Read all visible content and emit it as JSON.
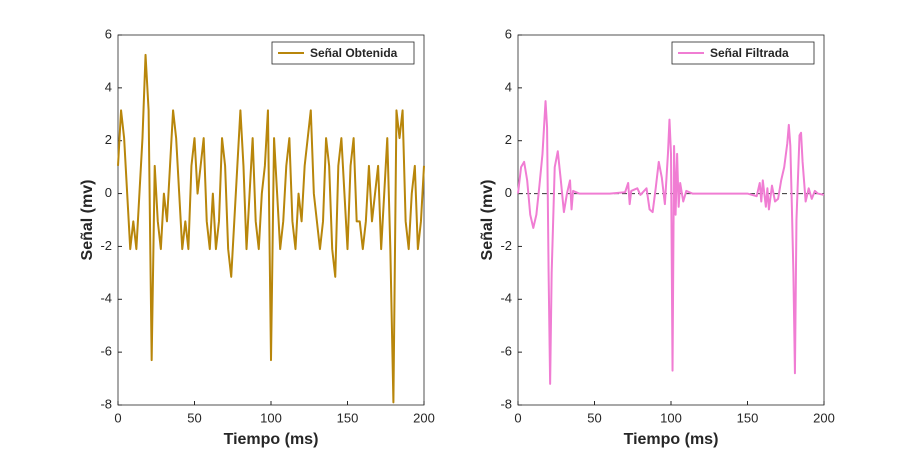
{
  "chart_data": [
    {
      "type": "line",
      "xlabel": "Tiempo (ms)",
      "ylabel": "Señal (mv)",
      "xlim": [
        0,
        200
      ],
      "ylim": [
        -8,
        6
      ],
      "xticks": [
        0,
        50,
        100,
        150,
        200
      ],
      "yticks": [
        -8,
        -6,
        -4,
        -2,
        0,
        2,
        4,
        6
      ],
      "legend": "upper right",
      "series": [
        {
          "name": "Señal Obtenida",
          "color": "#b8860b",
          "x": [
            0,
            2,
            4,
            6,
            8,
            10,
            12,
            14,
            16,
            18,
            20,
            22,
            24,
            26,
            28,
            30,
            32,
            34,
            36,
            38,
            40,
            42,
            44,
            46,
            48,
            50,
            52,
            54,
            56,
            58,
            60,
            62,
            64,
            66,
            68,
            70,
            72,
            74,
            76,
            78,
            80,
            82,
            84,
            86,
            88,
            90,
            92,
            94,
            96,
            98,
            100,
            102,
            104,
            106,
            108,
            110,
            112,
            114,
            116,
            118,
            120,
            122,
            124,
            126,
            128,
            130,
            132,
            134,
            136,
            138,
            140,
            142,
            144,
            146,
            148,
            150,
            152,
            154,
            156,
            158,
            160,
            162,
            164,
            166,
            168,
            170,
            172,
            174,
            176,
            178,
            180,
            182,
            184,
            186,
            188,
            190,
            192,
            194,
            196,
            198,
            200
          ],
          "values": [
            1.05,
            3.15,
            2.1,
            0,
            -2.1,
            -1.05,
            -2.1,
            0,
            2.1,
            5.25,
            3.15,
            -6.3,
            1.05,
            -1.05,
            -2.1,
            0,
            -1.05,
            1.05,
            3.15,
            2.1,
            0,
            -2.1,
            -1.05,
            -2.1,
            1.05,
            2.1,
            0,
            1.05,
            2.1,
            -1.05,
            -2.1,
            0,
            -2.1,
            -1.05,
            2.1,
            1.05,
            -2.1,
            -3.15,
            -1.05,
            1.05,
            3.15,
            1.05,
            -2.1,
            0,
            2.1,
            -1.05,
            -2.1,
            0,
            1.05,
            3.15,
            -6.3,
            2.1,
            0,
            -2.1,
            -1.05,
            1.05,
            2.1,
            -1.05,
            -2.1,
            0,
            -1.05,
            1.05,
            2.1,
            3.15,
            0,
            -1.05,
            -2.1,
            -1.05,
            2.1,
            1.05,
            -2.1,
            -3.15,
            1.05,
            2.1,
            0,
            -2.1,
            1.05,
            2.1,
            -1.05,
            -1.05,
            -2.1,
            -1.05,
            1.05,
            -1.05,
            0,
            1.05,
            -2.1,
            0,
            2.1,
            -2.1,
            -7.9,
            3.15,
            2.1,
            3.15,
            -1.05,
            -2.1,
            0,
            1.05,
            -2.1,
            -1.05,
            1.05
          ]
        }
      ]
    },
    {
      "type": "line",
      "xlabel": "Tiempo (ms)",
      "ylabel": "Señal (mv)",
      "xlim": [
        0,
        200
      ],
      "ylim": [
        -8,
        6
      ],
      "xticks": [
        0,
        50,
        100,
        150,
        200
      ],
      "yticks": [
        -8,
        -6,
        -4,
        -2,
        0,
        2,
        4,
        6
      ],
      "legend": "upper right",
      "hline": 0,
      "series": [
        {
          "name": "Señal Filtrada",
          "color": "#f07dd3",
          "x": [
            0,
            2,
            4,
            6,
            8,
            10,
            12,
            14,
            16,
            18,
            19,
            20,
            21,
            22,
            24,
            26,
            28,
            30,
            32,
            34,
            35,
            36,
            40,
            60,
            70,
            72,
            73,
            74,
            78,
            80,
            84,
            86,
            88,
            90,
            92,
            94,
            96,
            98,
            99,
            100,
            101,
            102,
            103,
            104,
            105,
            106,
            108,
            110,
            114,
            150,
            156,
            158,
            159,
            160,
            162,
            163,
            164,
            166,
            168,
            170,
            172,
            174,
            176,
            177,
            178,
            179,
            180,
            181,
            182,
            184,
            185,
            186,
            188,
            190,
            192,
            194,
            196,
            200
          ],
          "values": [
            0,
            1.0,
            1.2,
            0.5,
            -0.8,
            -1.3,
            -0.8,
            0.3,
            1.5,
            3.5,
            2.5,
            -3,
            -7.2,
            -3,
            1.0,
            1.6,
            0.5,
            -0.7,
            0,
            0.5,
            -0.6,
            0.1,
            0,
            0,
            0.05,
            0.4,
            -0.4,
            0.1,
            0.2,
            -0.05,
            0.2,
            -0.6,
            -0.7,
            0.2,
            1.2,
            0.6,
            -0.4,
            1.5,
            2.8,
            1.5,
            -6.7,
            1.8,
            -0.8,
            1.5,
            -0.5,
            0.4,
            -0.3,
            0.1,
            0,
            0,
            -0.1,
            0.4,
            -0.3,
            0.5,
            -0.5,
            0.2,
            -0.6,
            0.3,
            -0.3,
            -0.2,
            0.5,
            1.0,
            1.9,
            2.6,
            1.8,
            -0.5,
            -3,
            -6.8,
            -1,
            2.2,
            2.3,
            1.2,
            -0.3,
            0.2,
            -0.2,
            0.1,
            0,
            -0.05
          ]
        }
      ]
    }
  ]
}
